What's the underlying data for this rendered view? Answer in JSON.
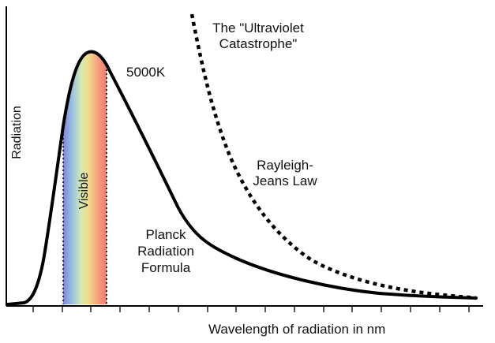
{
  "labels": {
    "y_axis": "Radiation",
    "x_axis": "Wavelength of radiation in nm",
    "temperature": "5000K",
    "visible": "Visible",
    "uv_catastrophe_line1": "The \"Ultraviolet",
    "uv_catastrophe_line2": "Catastrophe\"",
    "rayleigh_line1": "Rayleigh-",
    "rayleigh_line2": "Jeans Law",
    "planck_line1": "Planck",
    "planck_line2": "Radiation",
    "planck_line3": "Formula"
  },
  "colors": {
    "curve": "#000000",
    "spectrum": [
      "#7f86d8",
      "#9cc3e2",
      "#d6ecb0",
      "#f3d78a",
      "#f5a17f",
      "#ee7a72"
    ]
  },
  "curves": {
    "planck": "Planck Radiation Formula (solid)",
    "rayleigh_jeans": "Rayleigh-Jeans Law (dotted)"
  }
}
